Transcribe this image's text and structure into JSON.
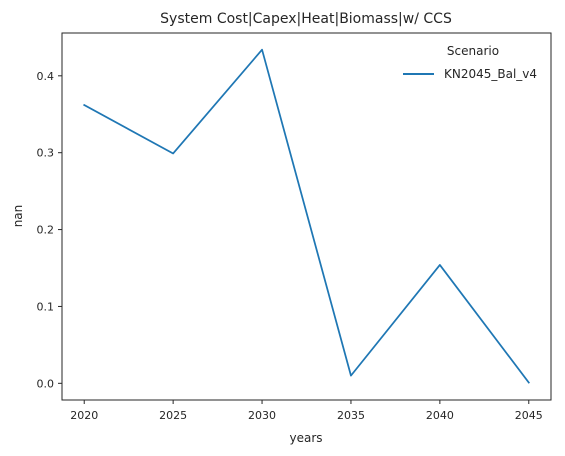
{
  "chart_data": {
    "type": "line",
    "title": "System Cost|Capex|Heat|Biomass|w/ CCS",
    "xlabel": "years",
    "ylabel": "nan",
    "x": [
      2020,
      2025,
      2030,
      2035,
      2040,
      2045
    ],
    "x_ticks": [
      "2020",
      "2025",
      "2030",
      "2035",
      "2040",
      "2045"
    ],
    "y_ticks": [
      "0.0",
      "0.1",
      "0.2",
      "0.3",
      "0.4"
    ],
    "xlim": [
      2018.75,
      2046.25
    ],
    "ylim": [
      -0.0217,
      0.4557
    ],
    "grid": false,
    "legend": {
      "title": "Scenario",
      "placement": "top-right"
    },
    "series": [
      {
        "name": "KN2045_Bal_v4",
        "color": "#1f77b4",
        "values": [
          0.362,
          0.299,
          0.434,
          0.01,
          0.154,
          0.001
        ]
      }
    ]
  }
}
